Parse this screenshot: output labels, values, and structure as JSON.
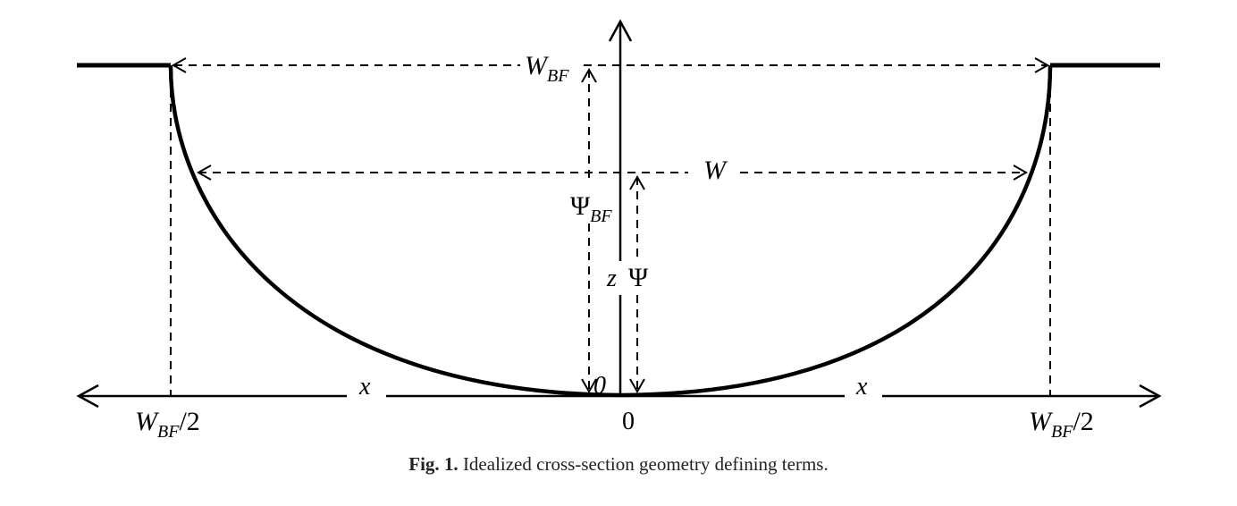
{
  "labels": {
    "w_bf_top": {
      "main": "W",
      "sub": "BF"
    },
    "w": "W",
    "psi_bf": {
      "main": "Ψ",
      "sub": "BF"
    },
    "z": "z",
    "psi": "Ψ",
    "x_left": "x",
    "x_right": "x",
    "zero_inner": "0",
    "zero_axis": "0",
    "w_bf_half_left": {
      "main": "W",
      "sub": "BF",
      "rest": "/2"
    },
    "w_bf_half_right": {
      "main": "W",
      "sub": "BF",
      "rest": "/2"
    }
  },
  "caption": {
    "prefix": "Fig. 1.",
    "text": " Idealized cross-section geometry defining terms."
  }
}
